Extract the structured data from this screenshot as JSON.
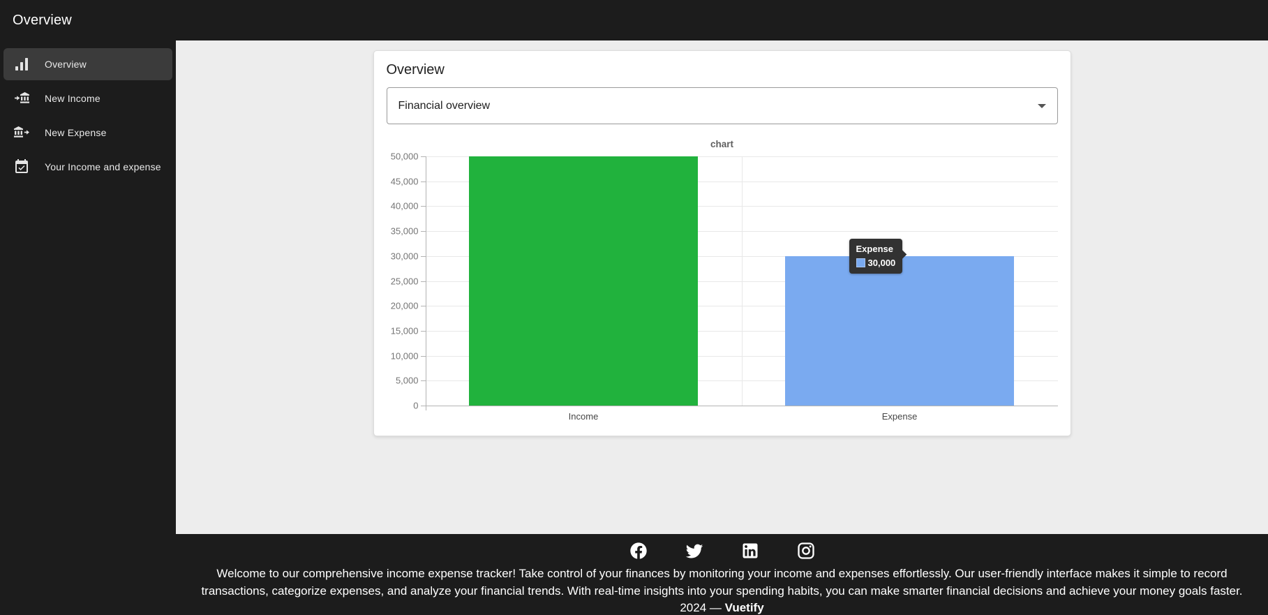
{
  "app_bar": {
    "title": "Overview"
  },
  "sidebar": {
    "items": [
      {
        "label": "Overview",
        "icon": "bar-chart-icon",
        "selected": true
      },
      {
        "label": "New Income",
        "icon": "bank-transfer-in-icon",
        "selected": false
      },
      {
        "label": "New Expense",
        "icon": "bank-transfer-out-icon",
        "selected": false
      },
      {
        "label": "Your Income and expense",
        "icon": "calendar-check-icon",
        "selected": false
      }
    ]
  },
  "card": {
    "title": "Overview",
    "select": {
      "value": "Financial overview"
    }
  },
  "chart_data": {
    "type": "bar",
    "title": "chart",
    "categories": [
      "Income",
      "Expense"
    ],
    "values": [
      50000,
      30000
    ],
    "colors": [
      "#21b23d",
      "#7aaaf0"
    ],
    "ylim": [
      0,
      50000
    ],
    "ytick_step": 5000,
    "ytick_labels_desc": [
      "50,000",
      "45,000",
      "40,000",
      "35,000",
      "30,000",
      "25,000",
      "20,000",
      "15,000",
      "10,000",
      "5,000",
      "0"
    ],
    "grid": true,
    "legend": "none",
    "tooltip": {
      "series": "Expense",
      "value": "30,000",
      "swatch_color": "#7aaaf0"
    }
  },
  "footer": {
    "social": [
      "facebook",
      "twitter",
      "linkedin",
      "instagram"
    ],
    "text": "Welcome to our comprehensive income expense tracker! Take control of your finances by monitoring your income and expenses effortlessly. Our user-friendly interface makes it simple to record transactions, categorize expenses, and analyze your financial trends. With real-time insights into your spending habits, you can make smarter financial decisions and achieve your money goals faster.",
    "year_text": "2024 — ",
    "brand": "Vuetify"
  }
}
